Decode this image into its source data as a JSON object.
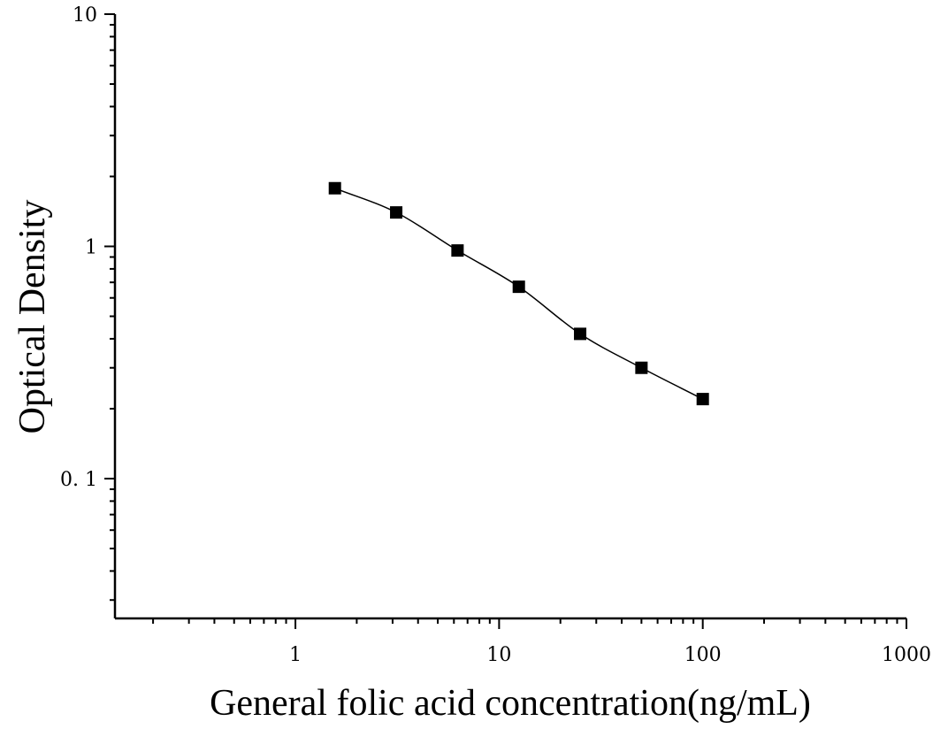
{
  "chart_data": {
    "type": "scatter",
    "title": "",
    "xlabel": "General folic acid concentration(ng/mL)",
    "ylabel": "Optical Density",
    "xscale": "log",
    "yscale": "log",
    "xlim": [
      0.13,
      1000
    ],
    "ylim": [
      0.025,
      10
    ],
    "x_ticks": [
      {
        "value": 1,
        "label": "1"
      },
      {
        "value": 10,
        "label": "10"
      },
      {
        "value": 100,
        "label": "100"
      },
      {
        "value": 1000,
        "label": "1000"
      }
    ],
    "y_ticks": [
      {
        "value": 10,
        "label": "10"
      },
      {
        "value": 1,
        "label": "1"
      },
      {
        "value": 0.1,
        "label": "0. 1"
      }
    ],
    "grid": false,
    "legend": "none",
    "marker": "square",
    "fit_line": "smooth curve through points",
    "series": [
      {
        "x": [
          1.5625,
          3.125,
          6.25,
          12.5,
          25,
          50,
          100
        ],
        "y": [
          1.78,
          1.4,
          0.96,
          0.67,
          0.42,
          0.3,
          0.22
        ]
      }
    ],
    "colors": {
      "marker": "#000000",
      "line": "#000000",
      "axis": "#000000"
    }
  }
}
